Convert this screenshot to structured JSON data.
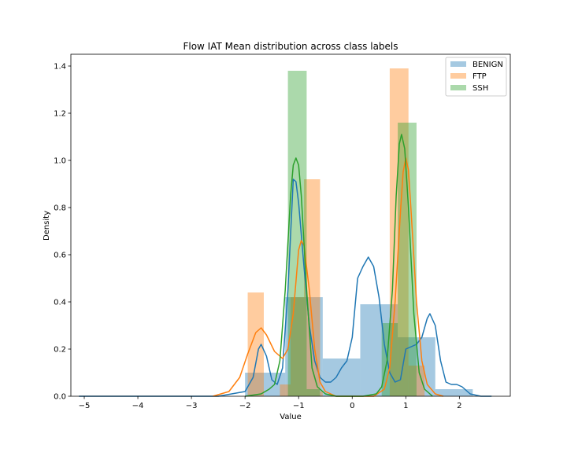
{
  "chart_data": {
    "type": "histogram",
    "title": "Flow IAT Mean distribution across class labels",
    "xlabel": "Value",
    "ylabel": "Density",
    "xlim": [
      -5.25,
      2.95
    ],
    "ylim": [
      0,
      1.45
    ],
    "xticks": [
      -5,
      -4,
      -3,
      -2,
      -1,
      0,
      1,
      2
    ],
    "xtick_labels": [
      "−5",
      "−4",
      "−3",
      "−2",
      "−1",
      "0",
      "1",
      "2"
    ],
    "yticks": [
      0.0,
      0.2,
      0.4,
      0.6,
      0.8,
      1.0,
      1.2,
      1.4
    ],
    "ytick_labels": [
      "0.0",
      "0.2",
      "0.4",
      "0.6",
      "0.8",
      "1.0",
      "1.2",
      "1.4"
    ],
    "grid": false,
    "legend_position": "top-right",
    "series": [
      {
        "name": "BENIGN",
        "color": "#1f77b4",
        "hist": [
          {
            "x0": -2.0,
            "x1": -1.25,
            "y": 0.1
          },
          {
            "x0": -1.25,
            "x1": -0.55,
            "y": 0.42
          },
          {
            "x0": -0.55,
            "x1": 0.15,
            "y": 0.16
          },
          {
            "x0": 0.15,
            "x1": 0.85,
            "y": 0.39
          },
          {
            "x0": 0.85,
            "x1": 1.55,
            "y": 0.25
          },
          {
            "x0": 1.55,
            "x1": 2.25,
            "y": 0.03
          }
        ],
        "kde": [
          [
            -5.1,
            0.0
          ],
          [
            -2.5,
            0.0
          ],
          [
            -2.0,
            0.02
          ],
          [
            -1.85,
            0.08
          ],
          [
            -1.75,
            0.2
          ],
          [
            -1.7,
            0.22
          ],
          [
            -1.6,
            0.17
          ],
          [
            -1.5,
            0.07
          ],
          [
            -1.4,
            0.05
          ],
          [
            -1.3,
            0.12
          ],
          [
            -1.2,
            0.45
          ],
          [
            -1.1,
            0.92
          ],
          [
            -1.05,
            0.91
          ],
          [
            -1.0,
            0.82
          ],
          [
            -0.9,
            0.55
          ],
          [
            -0.8,
            0.3
          ],
          [
            -0.7,
            0.15
          ],
          [
            -0.6,
            0.08
          ],
          [
            -0.5,
            0.06
          ],
          [
            -0.4,
            0.06
          ],
          [
            -0.3,
            0.08
          ],
          [
            -0.2,
            0.12
          ],
          [
            -0.1,
            0.15
          ],
          [
            0.0,
            0.25
          ],
          [
            0.1,
            0.5
          ],
          [
            0.2,
            0.55
          ],
          [
            0.3,
            0.59
          ],
          [
            0.4,
            0.55
          ],
          [
            0.5,
            0.42
          ],
          [
            0.6,
            0.22
          ],
          [
            0.7,
            0.1
          ],
          [
            0.8,
            0.06
          ],
          [
            0.9,
            0.07
          ],
          [
            1.0,
            0.2
          ],
          [
            1.1,
            0.21
          ],
          [
            1.2,
            0.22
          ],
          [
            1.3,
            0.25
          ],
          [
            1.4,
            0.33
          ],
          [
            1.45,
            0.35
          ],
          [
            1.55,
            0.3
          ],
          [
            1.65,
            0.15
          ],
          [
            1.75,
            0.06
          ],
          [
            1.85,
            0.05
          ],
          [
            1.95,
            0.05
          ],
          [
            2.05,
            0.04
          ],
          [
            2.2,
            0.01
          ],
          [
            2.4,
            0.0
          ],
          [
            2.6,
            0.0
          ]
        ]
      },
      {
        "name": "FTP",
        "color": "#ff7f0e",
        "hist": [
          {
            "x0": -1.95,
            "x1": -1.65,
            "y": 0.44
          },
          {
            "x0": -1.35,
            "x1": -1.15,
            "y": 0.05
          },
          {
            "x0": -1.15,
            "x1": -0.9,
            "y": 0.42
          },
          {
            "x0": -0.9,
            "x1": -0.6,
            "y": 0.92
          },
          {
            "x0": -0.6,
            "x1": -0.55,
            "y": 0.02
          },
          {
            "x0": 0.7,
            "x1": 1.05,
            "y": 1.39
          },
          {
            "x0": 1.05,
            "x1": 1.35,
            "y": 0.13
          }
        ],
        "kde": [
          [
            -2.6,
            0.0
          ],
          [
            -2.3,
            0.02
          ],
          [
            -2.1,
            0.08
          ],
          [
            -1.95,
            0.18
          ],
          [
            -1.8,
            0.27
          ],
          [
            -1.7,
            0.29
          ],
          [
            -1.6,
            0.26
          ],
          [
            -1.45,
            0.19
          ],
          [
            -1.3,
            0.16
          ],
          [
            -1.2,
            0.2
          ],
          [
            -1.1,
            0.35
          ],
          [
            -1.0,
            0.62
          ],
          [
            -0.95,
            0.66
          ],
          [
            -0.9,
            0.64
          ],
          [
            -0.8,
            0.45
          ],
          [
            -0.7,
            0.2
          ],
          [
            -0.6,
            0.06
          ],
          [
            -0.5,
            0.02
          ],
          [
            -0.3,
            0.0
          ],
          [
            0.4,
            0.0
          ],
          [
            0.6,
            0.03
          ],
          [
            0.7,
            0.12
          ],
          [
            0.8,
            0.4
          ],
          [
            0.9,
            0.78
          ],
          [
            0.95,
            0.95
          ],
          [
            1.0,
            1.01
          ],
          [
            1.05,
            0.96
          ],
          [
            1.1,
            0.78
          ],
          [
            1.2,
            0.4
          ],
          [
            1.3,
            0.15
          ],
          [
            1.4,
            0.05
          ],
          [
            1.55,
            0.01
          ],
          [
            1.7,
            0.0
          ]
        ]
      },
      {
        "name": "SSH",
        "color": "#2ca02c",
        "hist": [
          {
            "x0": -1.2,
            "x1": -0.85,
            "y": 1.38
          },
          {
            "x0": -0.85,
            "x1": -0.6,
            "y": 0.03
          },
          {
            "x0": 0.55,
            "x1": 0.85,
            "y": 0.31
          },
          {
            "x0": 0.85,
            "x1": 1.2,
            "y": 1.16
          }
        ],
        "kde": [
          [
            -2.0,
            0.0
          ],
          [
            -1.7,
            0.01
          ],
          [
            -1.55,
            0.03
          ],
          [
            -1.45,
            0.05
          ],
          [
            -1.35,
            0.15
          ],
          [
            -1.25,
            0.45
          ],
          [
            -1.15,
            0.85
          ],
          [
            -1.1,
            0.98
          ],
          [
            -1.05,
            1.01
          ],
          [
            -1.0,
            0.98
          ],
          [
            -0.95,
            0.85
          ],
          [
            -0.85,
            0.45
          ],
          [
            -0.75,
            0.12
          ],
          [
            -0.65,
            0.04
          ],
          [
            -0.5,
            0.01
          ],
          [
            -0.3,
            0.0
          ],
          [
            0.2,
            0.0
          ],
          [
            0.45,
            0.01
          ],
          [
            0.55,
            0.04
          ],
          [
            0.65,
            0.15
          ],
          [
            0.75,
            0.45
          ],
          [
            0.82,
            0.85
          ],
          [
            0.88,
            1.07
          ],
          [
            0.92,
            1.11
          ],
          [
            0.98,
            1.05
          ],
          [
            1.05,
            0.8
          ],
          [
            1.15,
            0.35
          ],
          [
            1.25,
            0.1
          ],
          [
            1.35,
            0.03
          ],
          [
            1.5,
            0.0
          ]
        ]
      }
    ]
  }
}
